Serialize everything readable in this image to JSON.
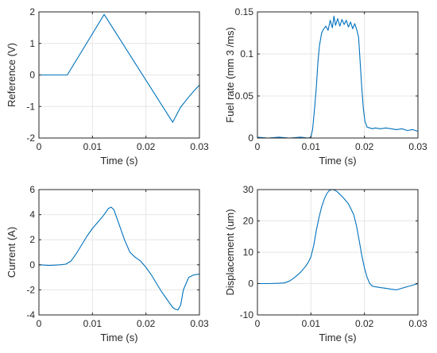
{
  "colors": {
    "series": "#0072bd",
    "axis": "#262626",
    "grid": "#e6e6e6"
  },
  "chart_data": [
    {
      "type": "line",
      "xlabel": "Time (s)",
      "ylabel": "Reference (V)",
      "xlim": [
        0,
        0.03
      ],
      "ylim": [
        -2,
        2
      ],
      "xticks": [
        0,
        0.01,
        0.02,
        0.03
      ],
      "xtick_labels": [
        "0",
        "0.01",
        "0.02",
        "0.03"
      ],
      "yticks": [
        -2,
        -1,
        0,
        1,
        2
      ],
      "ytick_labels": [
        "-2",
        "-1",
        "0",
        "1",
        "2"
      ],
      "grid": true,
      "series": [
        {
          "x": [
            0,
            0.0053,
            0.0122,
            0.025,
            0.0265,
            0.028,
            0.029,
            0.03
          ],
          "y": [
            0,
            0,
            1.92,
            -1.5,
            -1.02,
            -0.7,
            -0.5,
            -0.32
          ]
        }
      ]
    },
    {
      "type": "line",
      "xlabel": "Time (s)",
      "ylabel": "Fuel rate (mm  3 /ms)",
      "xlim": [
        0,
        0.03
      ],
      "ylim": [
        0,
        0.15
      ],
      "xticks": [
        0,
        0.01,
        0.02,
        0.03
      ],
      "xtick_labels": [
        "0",
        "0.01",
        "0.02",
        "0.03"
      ],
      "yticks": [
        0,
        0.05,
        0.1,
        0.15
      ],
      "ytick_labels": [
        "0",
        "0.05",
        "0.1",
        "0.15"
      ],
      "grid": true,
      "series": [
        {
          "x": [
            0,
            0.002,
            0.004,
            0.006,
            0.008,
            0.0095,
            0.01,
            0.0103,
            0.0106,
            0.011,
            0.0113,
            0.0116,
            0.012,
            0.0124,
            0.0128,
            0.0132,
            0.0136,
            0.014,
            0.0143,
            0.0146,
            0.015,
            0.0154,
            0.0158,
            0.0162,
            0.0166,
            0.017,
            0.0174,
            0.0178,
            0.0182,
            0.0186,
            0.0189,
            0.0192,
            0.0195,
            0.0198,
            0.0201,
            0.0205,
            0.021,
            0.0215,
            0.022,
            0.023,
            0.024,
            0.025,
            0.026,
            0.027,
            0.028,
            0.029,
            0.03
          ],
          "y": [
            0.001,
            0.0,
            0.001,
            0.0,
            0.001,
            0.0,
            0.001,
            0.01,
            0.03,
            0.06,
            0.09,
            0.11,
            0.125,
            0.13,
            0.133,
            0.128,
            0.14,
            0.131,
            0.145,
            0.134,
            0.142,
            0.133,
            0.141,
            0.135,
            0.14,
            0.132,
            0.138,
            0.13,
            0.136,
            0.128,
            0.12,
            0.09,
            0.06,
            0.035,
            0.02,
            0.013,
            0.012,
            0.011,
            0.012,
            0.011,
            0.012,
            0.011,
            0.01,
            0.011,
            0.009,
            0.01,
            0.008
          ]
        }
      ]
    },
    {
      "type": "line",
      "xlabel": "Time (s)",
      "ylabel": "Current (A)",
      "xlim": [
        0,
        0.03
      ],
      "ylim": [
        -4,
        6
      ],
      "xticks": [
        0,
        0.01,
        0.02,
        0.03
      ],
      "xtick_labels": [
        "0",
        "0.01",
        "0.02",
        "0.03"
      ],
      "yticks": [
        -4,
        -2,
        0,
        2,
        4,
        6
      ],
      "ytick_labels": [
        "-4",
        "-2",
        "0",
        "2",
        "4",
        "6"
      ],
      "grid": true,
      "series": [
        {
          "x": [
            0,
            0.002,
            0.004,
            0.005,
            0.006,
            0.007,
            0.008,
            0.009,
            0.01,
            0.011,
            0.012,
            0.0125,
            0.013,
            0.0135,
            0.014,
            0.015,
            0.016,
            0.017,
            0.018,
            0.019,
            0.02,
            0.021,
            0.022,
            0.023,
            0.024,
            0.025,
            0.0255,
            0.026,
            0.0265,
            0.027,
            0.028,
            0.029,
            0.03
          ],
          "y": [
            0.0,
            -0.05,
            0.0,
            0.05,
            0.3,
            0.9,
            1.6,
            2.3,
            2.9,
            3.4,
            3.9,
            4.2,
            4.5,
            4.6,
            4.4,
            3.2,
            2.0,
            1.0,
            0.6,
            0.3,
            -0.2,
            -0.8,
            -1.5,
            -2.2,
            -2.8,
            -3.4,
            -3.55,
            -3.6,
            -3.2,
            -2.0,
            -1.0,
            -0.8,
            -0.75
          ]
        }
      ]
    },
    {
      "type": "line",
      "xlabel": "Time (s)",
      "ylabel": "Displacement (um)",
      "xlim": [
        0,
        0.03
      ],
      "ylim": [
        -10,
        30
      ],
      "xticks": [
        0,
        0.01,
        0.02,
        0.03
      ],
      "xtick_labels": [
        "0",
        "0.01",
        "0.02",
        "0.03"
      ],
      "yticks": [
        -10,
        0,
        10,
        20,
        30
      ],
      "ytick_labels": [
        "-10",
        "0",
        "10",
        "20",
        "30"
      ],
      "grid": true,
      "series": [
        {
          "x": [
            0,
            0.002,
            0.004,
            0.005,
            0.006,
            0.007,
            0.008,
            0.009,
            0.0095,
            0.01,
            0.0105,
            0.011,
            0.0115,
            0.012,
            0.0125,
            0.013,
            0.0135,
            0.014,
            0.0145,
            0.015,
            0.016,
            0.017,
            0.018,
            0.0185,
            0.019,
            0.0195,
            0.02,
            0.0205,
            0.021,
            0.0215,
            0.022,
            0.023,
            0.024,
            0.025,
            0.026,
            0.027,
            0.028,
            0.029,
            0.03
          ],
          "y": [
            0,
            0,
            0.1,
            0.2,
            0.8,
            2.0,
            3.5,
            5.5,
            6.8,
            8.5,
            12.0,
            17.0,
            21.0,
            24.5,
            27.0,
            28.8,
            29.8,
            30.0,
            29.8,
            29.2,
            27.5,
            25.5,
            22.0,
            18.5,
            14.0,
            9.0,
            5.0,
            2.0,
            0.0,
            -0.8,
            -1.0,
            -1.3,
            -1.5,
            -1.8,
            -2.0,
            -1.5,
            -1.0,
            -0.5,
            0.0
          ]
        }
      ]
    }
  ]
}
